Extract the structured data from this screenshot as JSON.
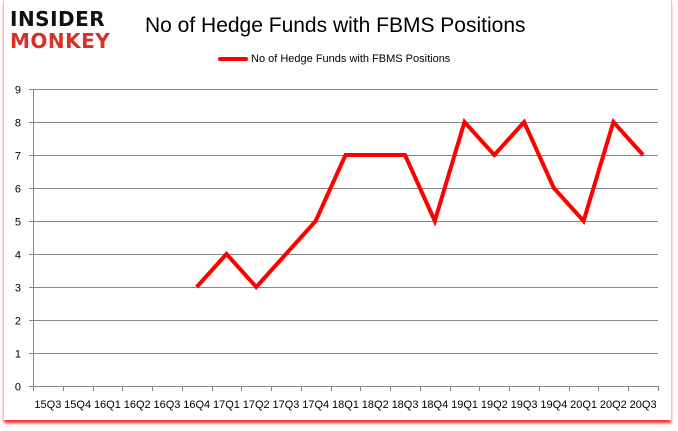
{
  "branding": {
    "logo_line1": "INSIDER",
    "logo_line2": "MONKEY"
  },
  "chart_data": {
    "type": "line",
    "title": "No of Hedge Funds with FBMS Positions",
    "xlabel": "",
    "ylabel": "",
    "categories": [
      "15Q3",
      "15Q4",
      "16Q1",
      "16Q2",
      "16Q3",
      "16Q4",
      "17Q1",
      "17Q2",
      "17Q3",
      "17Q4",
      "18Q1",
      "18Q2",
      "18Q3",
      "18Q4",
      "19Q1",
      "19Q2",
      "19Q3",
      "19Q4",
      "20Q1",
      "20Q2",
      "20Q3"
    ],
    "series": [
      {
        "name": "No of Hedge Funds with FBMS Positions",
        "color": "#ff0000",
        "values": [
          null,
          null,
          null,
          null,
          null,
          3,
          4,
          3,
          4,
          5,
          7,
          7,
          7,
          5,
          8,
          7,
          8,
          6,
          5,
          8,
          7
        ]
      }
    ],
    "ylim": [
      0,
      9
    ],
    "yticks": [
      0,
      1,
      2,
      3,
      4,
      5,
      6,
      7,
      8,
      9
    ],
    "grid": true,
    "legend_position": "top"
  }
}
